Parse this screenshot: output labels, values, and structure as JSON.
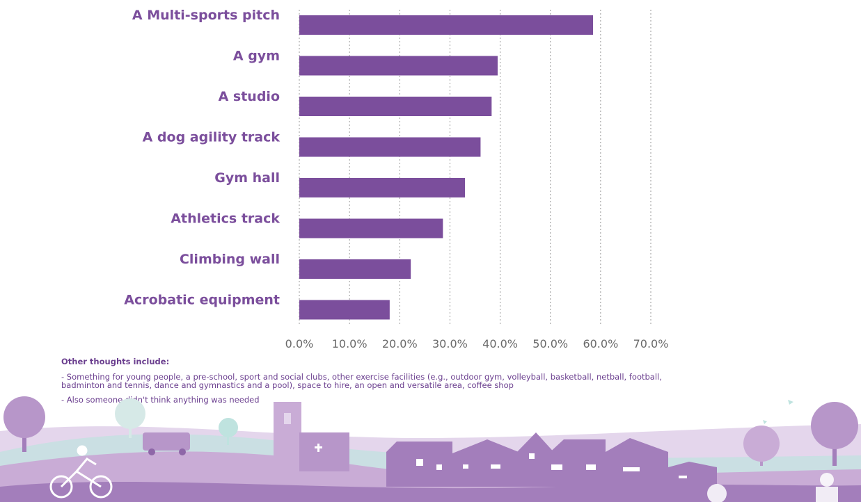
{
  "chart_data": {
    "type": "bar",
    "orientation": "horizontal",
    "categories": [
      "A Multi-sports pitch",
      "A gym",
      "A studio",
      "A dog agility track",
      "Gym hall",
      "Athletics track",
      "Climbing wall",
      "Acrobatic equipment"
    ],
    "values": [
      58.5,
      39.5,
      38.3,
      36.1,
      33.0,
      28.6,
      22.2,
      18.0
    ],
    "xlim": [
      0,
      70
    ],
    "x_ticks": [
      "0.0%",
      "10.0%",
      "20.0%",
      "30.0%",
      "40.0%",
      "50.0%",
      "60.0%",
      "70.0%"
    ],
    "grid": "vertical dotted",
    "bar_color": "#7b4e9c",
    "label_color": "#7b4e9c"
  },
  "notes": {
    "heading": "Other thoughts include:",
    "items": [
      "- Something for young people, a pre-school, sport and social clubs, other exercise facilities (e.g., outdoor gym, volleyball, basketball, netball, football, badminton and tennis, dance and gymnastics and a pool), space to hire, an open and versatile area, coffee shop",
      "- Also someone didn't think anything was needed"
    ]
  },
  "colors": {
    "purple": "#7b4e9c",
    "lilac": "#c9acd6",
    "light_lilac": "#e4d6ec",
    "mint": "#bfe3df"
  },
  "illustration": {
    "description_icons": [
      "tree-icon",
      "cyclist-icon",
      "van-icon",
      "church-icon",
      "houses-icon",
      "bird-icon"
    ]
  }
}
